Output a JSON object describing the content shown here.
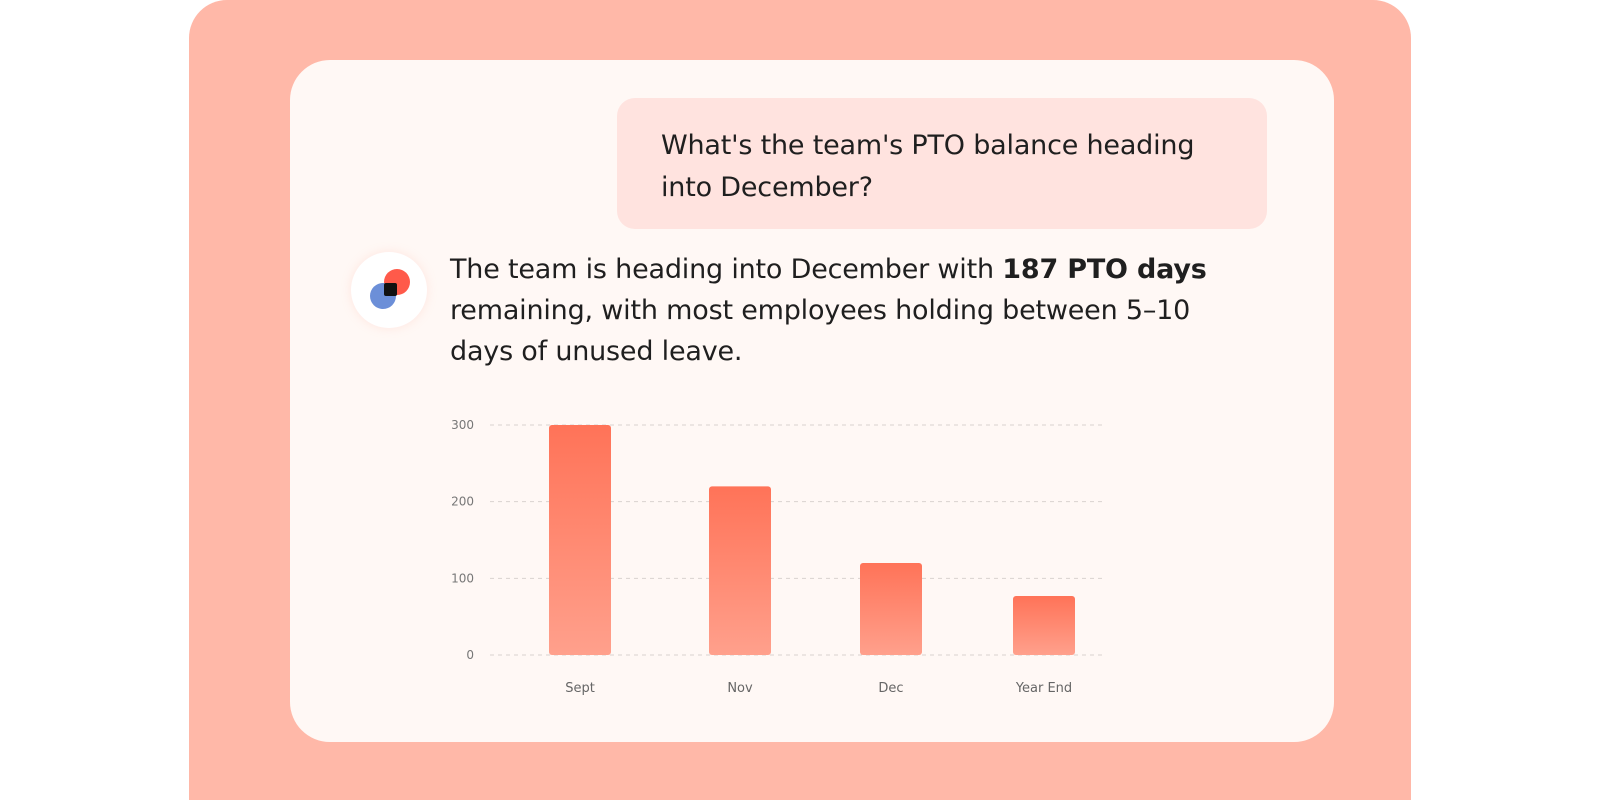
{
  "conversation": {
    "user_message": "What's the team's PTO balance heading into December?",
    "assistant_reply": {
      "text_before": "The team is heading into December with ",
      "highlight": "187 PTO days",
      "text_after": " remaining, with most employees holding between 5–10 days of unused leave."
    }
  },
  "icons": {
    "assistant_avatar": "assistant-logo-icon"
  },
  "colors": {
    "outer_background": "#ffb8a8",
    "card_background": "#fff8f5",
    "user_bubble": "#ffe3df",
    "bar_top": "#ff7358",
    "bar_bottom": "#ffa08c",
    "logo_red": "#ff5a4a",
    "logo_blue": "#6c8fd8"
  },
  "chart_data": {
    "type": "bar",
    "categories": [
      "Sept",
      "Nov",
      "Dec",
      "Year End"
    ],
    "values": [
      300,
      220,
      120,
      77
    ],
    "ylim": [
      0,
      300
    ],
    "yticks": [
      0,
      100,
      200,
      300
    ],
    "grid": true
  }
}
